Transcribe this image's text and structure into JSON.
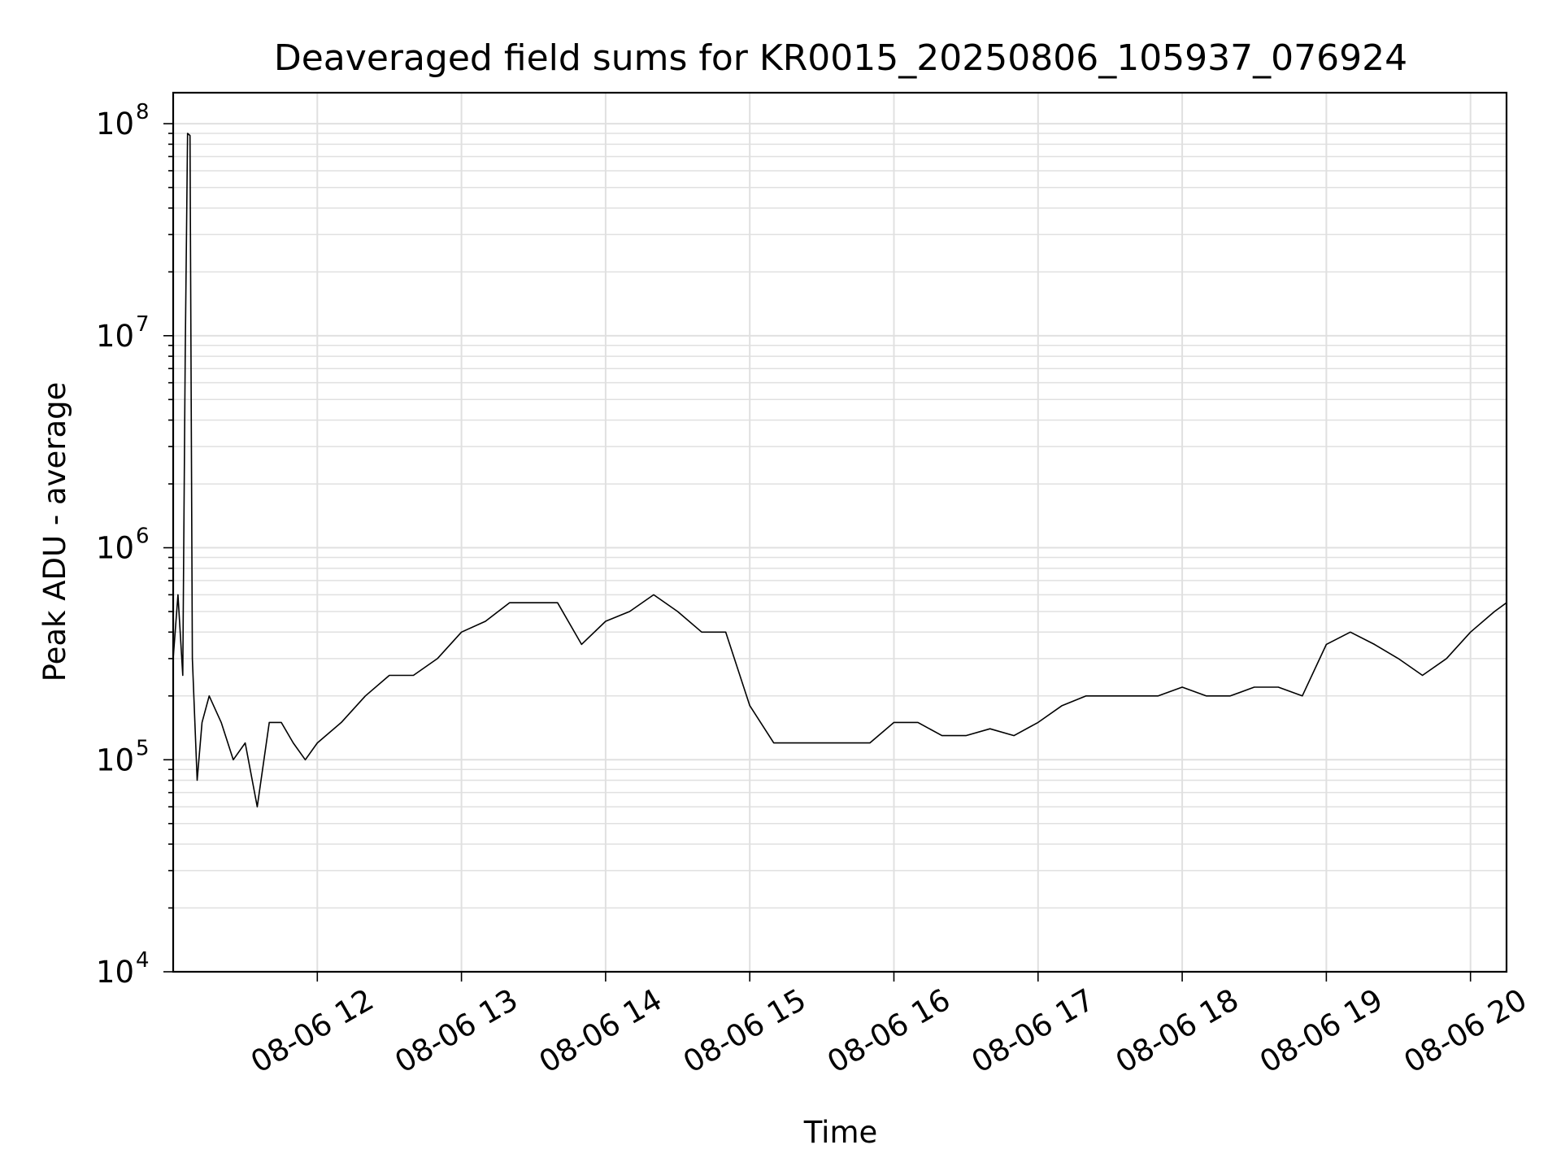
{
  "chart_data": {
    "type": "line",
    "title": "Deaveraged field sums for KR0015_20250806_105937_076924",
    "xlabel": "Time",
    "ylabel": "Peak ADU - average",
    "yscale": "log",
    "ylim": [
      10000,
      140000000
    ],
    "xlim": [
      "2025-08-06 11:00",
      "2025-08-06 20:15"
    ],
    "grid": true,
    "x_tick_labels": [
      "08-06 12",
      "08-06 13",
      "08-06 14",
      "08-06 15",
      "08-06 16",
      "08-06 17",
      "08-06 18",
      "08-06 19",
      "08-06 20"
    ],
    "y_ticks": [
      {
        "base": "10",
        "exp": "4",
        "value": 10000
      },
      {
        "base": "10",
        "exp": "5",
        "value": 100000
      },
      {
        "base": "10",
        "exp": "6",
        "value": 1000000
      },
      {
        "base": "10",
        "exp": "7",
        "value": 10000000
      },
      {
        "base": "10",
        "exp": "8",
        "value": 100000000
      }
    ],
    "series": [
      {
        "color": "#000000",
        "x": [
          "2025-08-06 11:00",
          "2025-08-06 11:02",
          "2025-08-06 11:04",
          "2025-08-06 11:05",
          "2025-08-06 11:06",
          "2025-08-06 11:07",
          "2025-08-06 11:08",
          "2025-08-06 11:10",
          "2025-08-06 11:12",
          "2025-08-06 11:15",
          "2025-08-06 11:20",
          "2025-08-06 11:25",
          "2025-08-06 11:30",
          "2025-08-06 11:35",
          "2025-08-06 11:40",
          "2025-08-06 11:45",
          "2025-08-06 11:50",
          "2025-08-06 11:55",
          "2025-08-06 12:00",
          "2025-08-06 12:10",
          "2025-08-06 12:20",
          "2025-08-06 12:30",
          "2025-08-06 12:40",
          "2025-08-06 12:50",
          "2025-08-06 13:00",
          "2025-08-06 13:10",
          "2025-08-06 13:20",
          "2025-08-06 13:30",
          "2025-08-06 13:40",
          "2025-08-06 13:50",
          "2025-08-06 14:00",
          "2025-08-06 14:10",
          "2025-08-06 14:20",
          "2025-08-06 14:30",
          "2025-08-06 14:40",
          "2025-08-06 14:50",
          "2025-08-06 15:00",
          "2025-08-06 15:10",
          "2025-08-06 15:20",
          "2025-08-06 15:30",
          "2025-08-06 15:40",
          "2025-08-06 15:50",
          "2025-08-06 16:00",
          "2025-08-06 16:10",
          "2025-08-06 16:20",
          "2025-08-06 16:30",
          "2025-08-06 16:40",
          "2025-08-06 16:50",
          "2025-08-06 17:00",
          "2025-08-06 17:10",
          "2025-08-06 17:20",
          "2025-08-06 17:30",
          "2025-08-06 17:40",
          "2025-08-06 17:50",
          "2025-08-06 18:00",
          "2025-08-06 18:10",
          "2025-08-06 18:20",
          "2025-08-06 18:30",
          "2025-08-06 18:40",
          "2025-08-06 18:50",
          "2025-08-06 19:00",
          "2025-08-06 19:10",
          "2025-08-06 19:20",
          "2025-08-06 19:30",
          "2025-08-06 19:40",
          "2025-08-06 19:50",
          "2025-08-06 20:00",
          "2025-08-06 20:10",
          "2025-08-06 20:15"
        ],
        "y": [
          300000,
          600000,
          250000,
          8000000,
          90000000,
          88000000,
          300000,
          80000,
          150000,
          200000,
          150000,
          100000,
          120000,
          60000,
          150000,
          150000,
          120000,
          100000,
          120000,
          150000,
          200000,
          250000,
          250000,
          300000,
          400000,
          450000,
          550000,
          550000,
          550000,
          350000,
          450000,
          500000,
          600000,
          500000,
          400000,
          400000,
          180000,
          120000,
          120000,
          120000,
          120000,
          120000,
          150000,
          150000,
          130000,
          130000,
          140000,
          130000,
          150000,
          180000,
          200000,
          200000,
          200000,
          200000,
          220000,
          200000,
          200000,
          220000,
          220000,
          200000,
          350000,
          400000,
          350000,
          300000,
          250000,
          300000,
          400000,
          500000,
          550000
        ]
      }
    ]
  }
}
